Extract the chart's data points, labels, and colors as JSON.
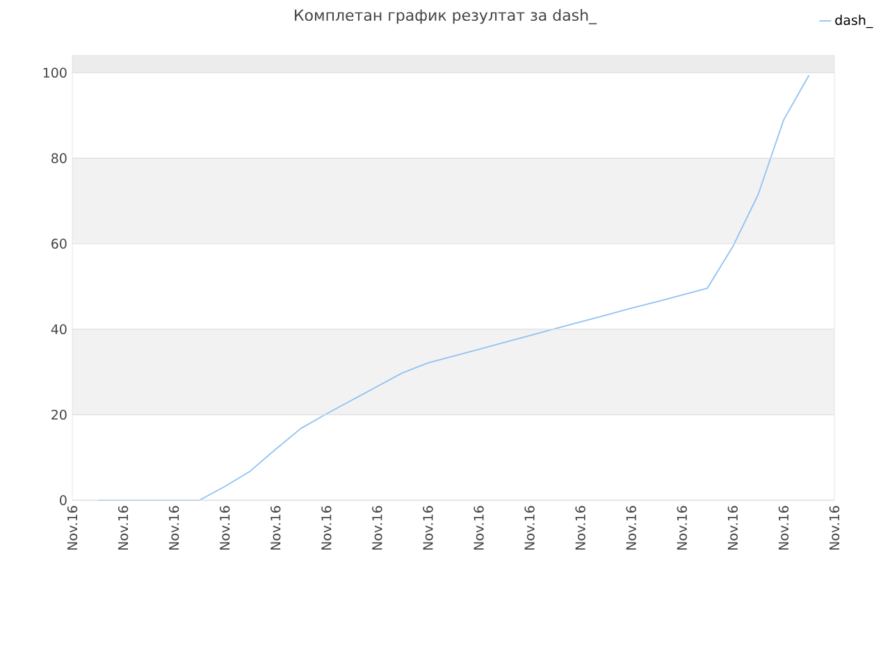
{
  "chart_data": {
    "type": "line",
    "title": "Комплетан график резултат за dash_",
    "categories": [
      "Nov.16",
      null,
      "Nov.16",
      null,
      "Nov.16",
      null,
      "Nov.16",
      null,
      "Nov.16",
      null,
      "Nov.16",
      null,
      "Nov.16",
      null,
      "Nov.16",
      null,
      "Nov.16",
      null,
      "Nov.16",
      null,
      "Nov.16",
      null,
      "Nov.16",
      null,
      "Nov.16",
      null,
      "Nov.16",
      null,
      "Nov.16",
      null,
      "Nov.16"
    ],
    "series": [
      {
        "name": "dash_",
        "color": "#90c2f3",
        "values": [
          null,
          0,
          0,
          0,
          0,
          0,
          3.2,
          6.8,
          11.9,
          16.8,
          20.2,
          23.4,
          26.6,
          29.8,
          32.1,
          33.7,
          35.3,
          36.9,
          38.5,
          40.1,
          41.7,
          43.3,
          44.9,
          46.4,
          48.0,
          49.6,
          59.3,
          71.5,
          88.9,
          99.4,
          null
        ]
      }
    ],
    "ylim": [
      0,
      104
    ],
    "yticks": [
      0,
      20,
      40,
      60,
      80,
      100
    ],
    "bands": [
      {
        "axis": "y",
        "from": 20,
        "to": 40,
        "color": "#f2f2f2"
      },
      {
        "axis": "y",
        "from": 60,
        "to": 80,
        "color": "#f2f2f2"
      },
      {
        "axis": "y",
        "from": 100,
        "to": 104,
        "color": "#ececec"
      }
    ],
    "grid": "y",
    "legend": "top right",
    "marker": "none",
    "line_style": "solid"
  }
}
